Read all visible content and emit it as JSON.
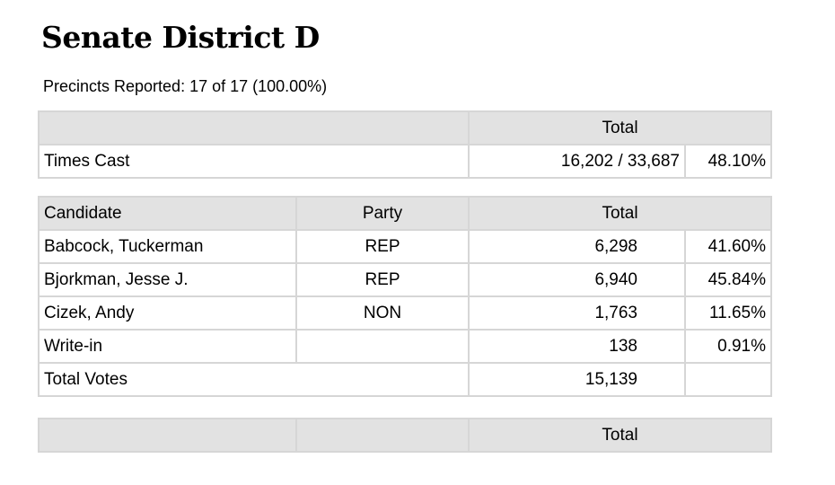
{
  "header": {
    "title": "Senate District D",
    "subtitle": "Precincts Reported: 17 of 17 (100.00%)"
  },
  "times_cast": {
    "header": "Total",
    "label": "Times Cast",
    "value": "16,202 / 33,687",
    "percent": "48.10%"
  },
  "results": {
    "columns": [
      "Candidate",
      "Party",
      "Total"
    ],
    "rows": [
      {
        "candidate": "Babcock, Tuckerman",
        "party": "REP",
        "votes": "6,298",
        "percent": "41.60%"
      },
      {
        "candidate": "Bjorkman, Jesse J.",
        "party": "REP",
        "votes": "6,940",
        "percent": "45.84%"
      },
      {
        "candidate": "Cizek, Andy",
        "party": "NON",
        "votes": "1,763",
        "percent": "11.65%"
      },
      {
        "candidate": "Write-in",
        "votes": "138",
        "percent": "0.91%"
      }
    ],
    "total": {
      "label": "Total Votes",
      "value": "15,139"
    }
  },
  "footer_table": {
    "header": "Total"
  }
}
